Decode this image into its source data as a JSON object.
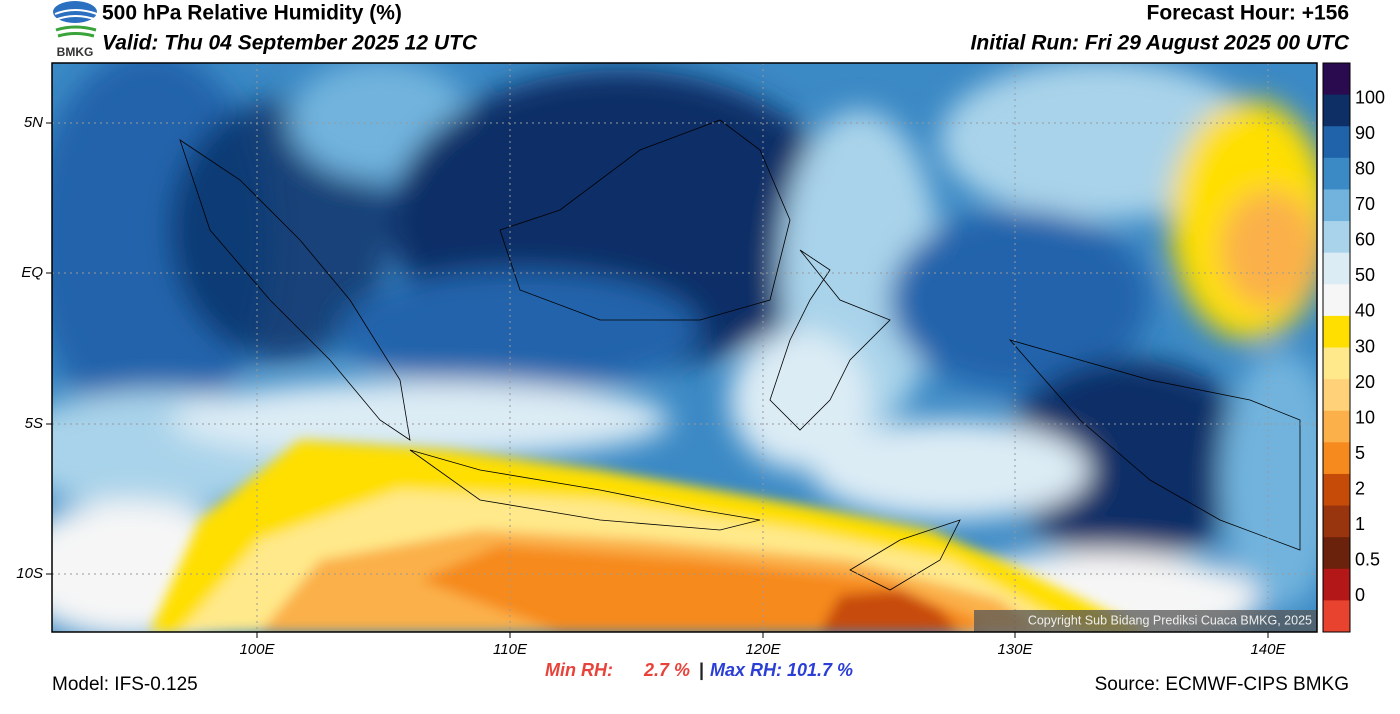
{
  "header": {
    "logo": "BMKG",
    "title": "500 hPa Relative Humidity (%)",
    "valid": "Valid: Thu 04 September 2025 12 UTC",
    "forecast": "Forecast Hour: +156",
    "initial": "Initial Run: Fri 29 August 2025 00 UTC"
  },
  "map": {
    "lat_labels": [
      "5N",
      "EQ",
      "5S",
      "10S"
    ],
    "lon_labels": [
      "100E",
      "110E",
      "120E",
      "130E",
      "140E"
    ],
    "copyright": "Copyright Sub Bidang Prediksi Cuaca BMKG, 2025"
  },
  "colorbar": {
    "labels": [
      "100",
      "90",
      "80",
      "70",
      "60",
      "50",
      "40",
      "30",
      "20",
      "10",
      "5",
      "2",
      "1",
      "0.5",
      "0"
    ],
    "colors": [
      "#2b0b4f",
      "#0d2f66",
      "#2063ab",
      "#3b89c5",
      "#71b3dd",
      "#a9d3ea",
      "#dcecf5",
      "#f6f6f6",
      "#ffdf00",
      "#ffe98a",
      "#ffd27a",
      "#fbb04a",
      "#f68a1e",
      "#c74b08",
      "#98340e",
      "#6a220c",
      "#b31717",
      "#e8432f"
    ]
  },
  "footer": {
    "model": "Model: IFS-0.125",
    "min_label": "Min RH:",
    "min_value": "2.7 %",
    "separator": "|",
    "max": "Max RH: 101.7 %",
    "source": "Source: ECMWF-CIPS BMKG"
  }
}
